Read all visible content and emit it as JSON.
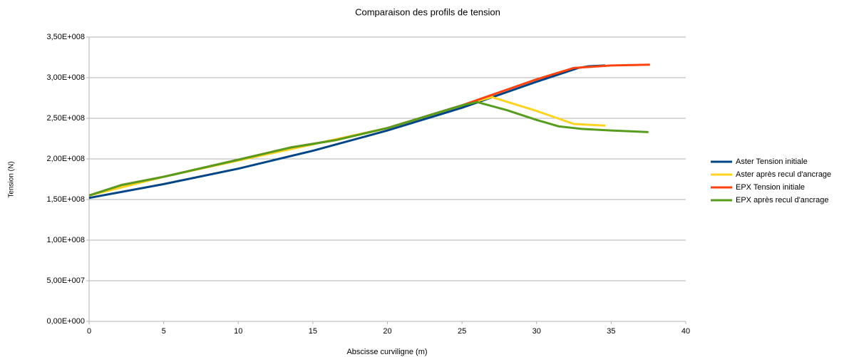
{
  "chart_data": {
    "type": "line",
    "title": "Comparaison des profils de tension",
    "x_label": "Abscisse curviligne (m)",
    "y_label": "Tension (N)",
    "xlim": [
      0,
      40
    ],
    "xticks": [
      0,
      5,
      10,
      15,
      20,
      25,
      30,
      35,
      40
    ],
    "ylim": [
      0,
      350000000
    ],
    "yticks": [
      {
        "value": 0,
        "label": "0,00E+000"
      },
      {
        "value": 50000000,
        "label": "5,00E+007"
      },
      {
        "value": 100000000,
        "label": "1,00E+008"
      },
      {
        "value": 150000000,
        "label": "1,50E+008"
      },
      {
        "value": 200000000,
        "label": "2,00E+008"
      },
      {
        "value": 250000000,
        "label": "2,50E+008"
      },
      {
        "value": 300000000,
        "label": "3,00E+008"
      },
      {
        "value": 350000000,
        "label": "3,50E+008"
      }
    ],
    "grid": true,
    "legend": "right",
    "series": [
      {
        "name": "Aster Tension initiale",
        "color": "#004586",
        "x": [
          0,
          5,
          10,
          15,
          20,
          25,
          30,
          32.8,
          33.5,
          34.6
        ],
        "values": [
          152000000,
          169000000,
          188000000,
          210000000,
          235000000,
          263000000,
          295000000,
          312000000,
          314000000,
          315000000
        ]
      },
      {
        "name": "Aster après recul d'ancrage",
        "color": "#ffd320",
        "x": [
          0,
          5,
          10,
          15,
          20,
          25,
          27,
          30,
          32.5,
          34.6
        ],
        "values": [
          155000000,
          178000000,
          198000000,
          218000000,
          238000000,
          266000000,
          276000000,
          259000000,
          243000000,
          241000000
        ]
      },
      {
        "name": "EPX Tension initiale",
        "color": "#ff420e",
        "x": [
          0,
          2.2,
          5,
          10,
          13.5,
          16.5,
          20,
          25,
          30,
          32.5,
          35,
          37.6
        ],
        "values": [
          155000000,
          168000000,
          178000000,
          199000000,
          214000000,
          223000000,
          238000000,
          266000000,
          298000000,
          312000000,
          315000000,
          316000000
        ]
      },
      {
        "name": "EPX après recul d'ancrage",
        "color": "#579d1c",
        "x": [
          0,
          2.2,
          5,
          10,
          13.5,
          16.5,
          20,
          25,
          26,
          28,
          30,
          31.5,
          33,
          35,
          37.5
        ],
        "values": [
          155000000,
          168000000,
          178000000,
          199000000,
          214000000,
          223000000,
          238000000,
          266000000,
          270000000,
          260000000,
          248000000,
          240000000,
          237000000,
          235000000,
          233000000
        ]
      }
    ]
  }
}
